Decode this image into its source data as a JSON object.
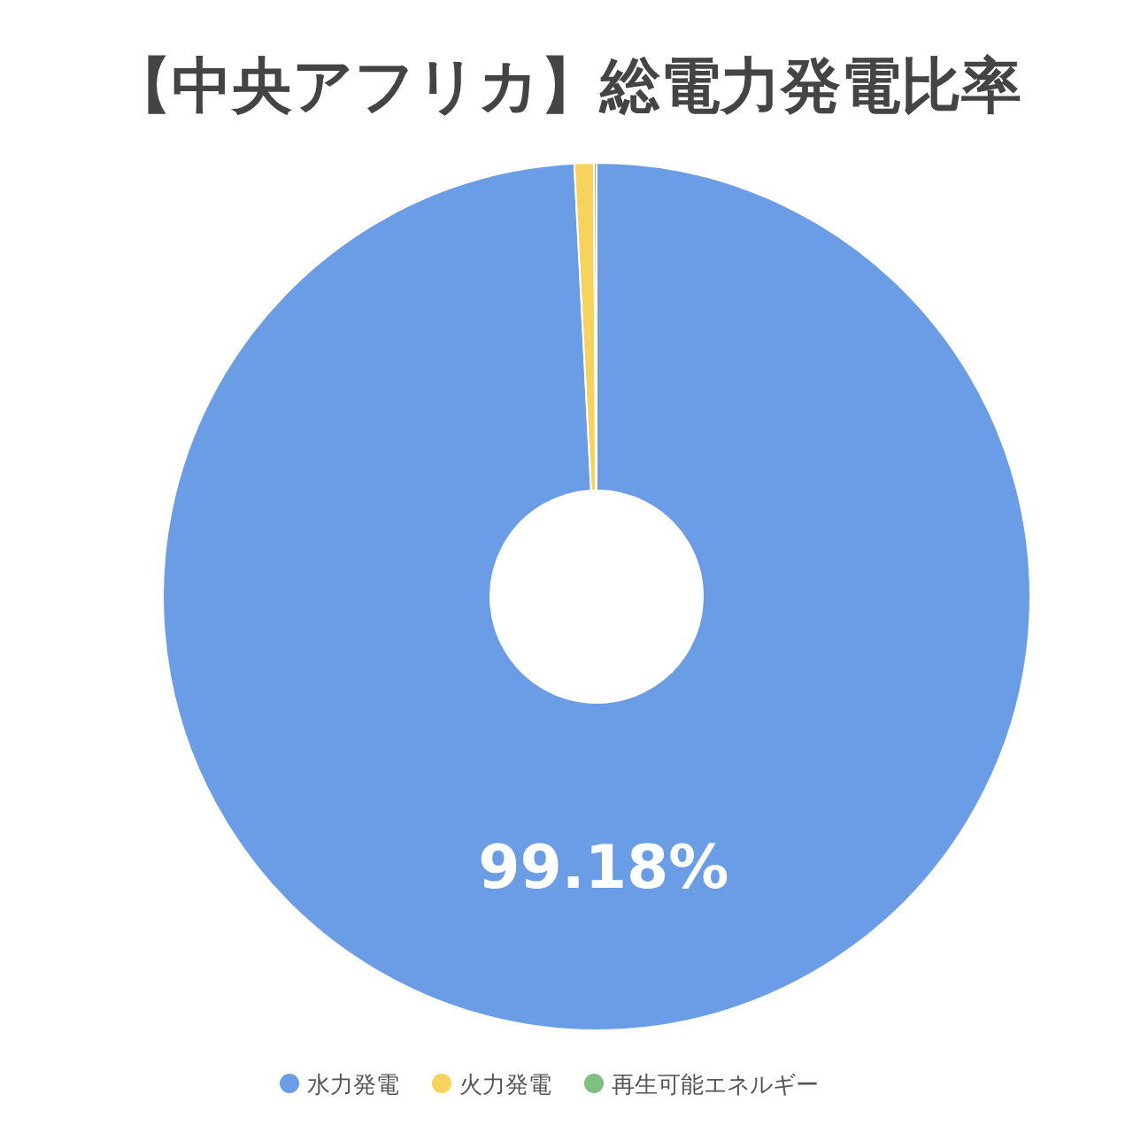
{
  "chart_data": {
    "type": "donut",
    "title": "【中央アフリカ】総電力発電比率",
    "categories": [
      "水力発電",
      "火力発電",
      "再生可能エネルギー"
    ],
    "values": [
      99.18,
      0.72,
      0.1
    ],
    "colors": [
      "#6b9de6",
      "#f7d35b",
      "#7fbf7f"
    ],
    "value_labels": [
      "99.18%",
      null,
      null
    ],
    "legend": "bottom"
  }
}
